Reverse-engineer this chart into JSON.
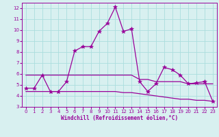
{
  "xlabel": "Windchill (Refroidissement éolien,°C)",
  "xlim": [
    -0.5,
    23.5
  ],
  "ylim": [
    3,
    12.5
  ],
  "yticks": [
    3,
    4,
    5,
    6,
    7,
    8,
    9,
    10,
    11,
    12
  ],
  "xticks": [
    0,
    1,
    2,
    3,
    4,
    5,
    6,
    7,
    8,
    9,
    10,
    11,
    12,
    13,
    14,
    15,
    16,
    17,
    18,
    19,
    20,
    21,
    22,
    23
  ],
  "bg_color": "#d8f0f0",
  "line_color": "#990099",
  "grid_color": "#aadddd",
  "line1_x": [
    0,
    1,
    2,
    3,
    4,
    5,
    6,
    7,
    8,
    9,
    10,
    11,
    12,
    13,
    14,
    15,
    16,
    17,
    18,
    19,
    20,
    21,
    22,
    23
  ],
  "line1_y": [
    4.7,
    4.7,
    5.9,
    4.4,
    4.4,
    5.3,
    8.1,
    8.5,
    8.5,
    9.9,
    10.6,
    12.1,
    9.9,
    10.1,
    5.3,
    4.4,
    5.1,
    6.6,
    6.4,
    5.9,
    5.1,
    5.2,
    5.3,
    3.5
  ],
  "line2_x": [
    0,
    1,
    2,
    3,
    4,
    5,
    6,
    7,
    8,
    9,
    10,
    11,
    12,
    13,
    14,
    15,
    16,
    17,
    18,
    19,
    20,
    21,
    22,
    23
  ],
  "line2_y": [
    5.9,
    5.9,
    5.9,
    5.9,
    5.9,
    5.9,
    5.9,
    5.9,
    5.9,
    5.9,
    5.9,
    5.9,
    5.9,
    5.9,
    5.5,
    5.5,
    5.3,
    5.3,
    5.3,
    5.3,
    5.1,
    5.1,
    5.1,
    5.1
  ],
  "line3_x": [
    0,
    1,
    2,
    3,
    4,
    5,
    6,
    7,
    8,
    9,
    10,
    11,
    12,
    13,
    14,
    15,
    16,
    17,
    18,
    19,
    20,
    21,
    22,
    23
  ],
  "line3_y": [
    4.4,
    4.4,
    4.4,
    4.4,
    4.4,
    4.4,
    4.4,
    4.4,
    4.4,
    4.4,
    4.4,
    4.4,
    4.3,
    4.3,
    4.2,
    4.1,
    4.0,
    3.9,
    3.8,
    3.7,
    3.7,
    3.6,
    3.6,
    3.5
  ]
}
